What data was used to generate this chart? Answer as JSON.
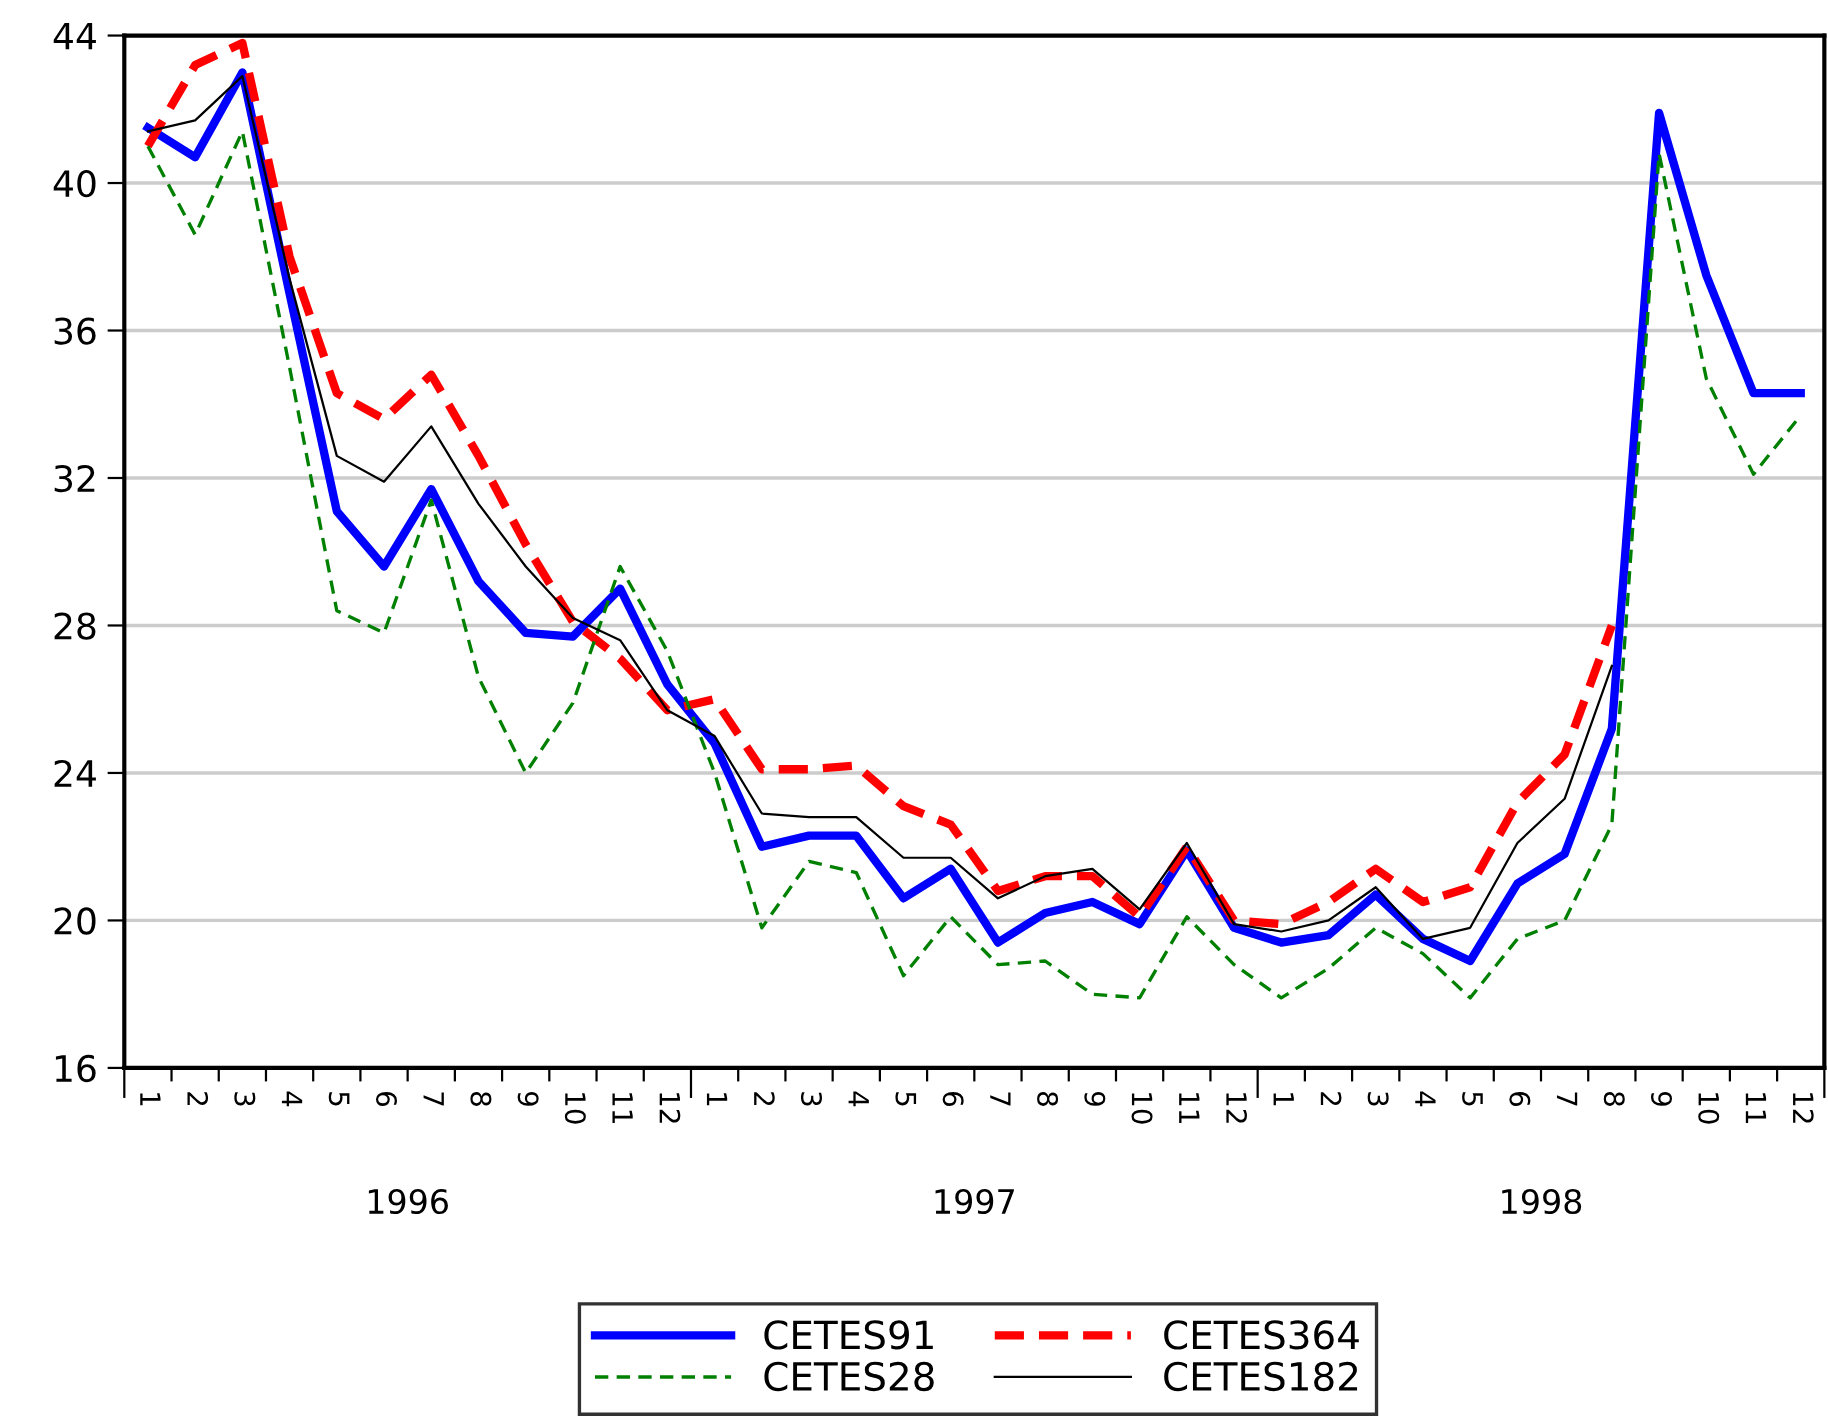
{
  "chart_data": {
    "type": "line",
    "categories": [
      "1",
      "2",
      "3",
      "4",
      "5",
      "6",
      "7",
      "8",
      "9",
      "10",
      "11",
      "12",
      "1",
      "2",
      "3",
      "4",
      "5",
      "6",
      "7",
      "8",
      "9",
      "10",
      "11",
      "12",
      "1",
      "2",
      "3",
      "4",
      "5",
      "6",
      "7",
      "8",
      "9",
      "10",
      "11",
      "12"
    ],
    "annotations": [
      "1996",
      "1997",
      "1998"
    ],
    "series": [
      {
        "name": "CETES91",
        "color": "#0000ff",
        "line_style": "solid",
        "values": [
          41.5,
          40.7,
          43.0,
          37.0,
          31.1,
          29.6,
          31.7,
          29.2,
          27.8,
          27.7,
          29.0,
          26.4,
          24.8,
          22.0,
          22.3,
          22.3,
          20.6,
          21.4,
          19.4,
          20.2,
          20.5,
          19.9,
          21.9,
          19.8,
          19.4,
          19.6,
          20.7,
          19.5,
          18.9,
          21.0,
          21.8,
          25.2,
          41.9,
          37.5,
          34.3,
          34.3
        ]
      },
      {
        "name": "CETES364",
        "color": "#ff0000",
        "line_style": "dashed",
        "values": [
          41.0,
          43.2,
          43.8,
          38.0,
          34.3,
          33.6,
          34.8,
          32.6,
          30.2,
          28.1,
          27.1,
          25.7,
          26.0,
          24.1,
          24.1,
          24.2,
          23.1,
          22.6,
          20.8,
          21.2,
          21.2,
          20.1,
          22.0,
          20.0,
          19.9,
          20.5,
          21.4,
          20.5,
          20.9,
          23.2,
          24.5,
          28.0,
          null,
          null,
          null,
          null
        ]
      },
      {
        "name": "CETES28",
        "color": "#008000",
        "line_style": "dashed",
        "values": [
          41.0,
          38.6,
          41.4,
          35.0,
          28.4,
          27.8,
          31.4,
          26.6,
          24.0,
          25.9,
          29.6,
          27.3,
          24.0,
          19.8,
          21.6,
          21.3,
          18.5,
          20.1,
          18.8,
          18.9,
          18.0,
          17.9,
          20.1,
          18.8,
          17.9,
          18.7,
          19.8,
          19.1,
          17.9,
          19.5,
          20.0,
          22.6,
          40.8,
          34.7,
          32.1,
          33.7
        ]
      },
      {
        "name": "CETES182",
        "color": "#000000",
        "line_style": "solid",
        "values": [
          41.4,
          41.7,
          42.9,
          37.4,
          32.6,
          31.9,
          33.4,
          31.3,
          29.6,
          28.2,
          27.6,
          25.7,
          25.0,
          22.9,
          22.8,
          22.8,
          21.7,
          21.7,
          20.6,
          21.2,
          21.4,
          20.3,
          22.1,
          19.9,
          19.7,
          20.0,
          20.9,
          19.5,
          19.8,
          22.1,
          23.3,
          26.9,
          null,
          null,
          null,
          null
        ]
      }
    ],
    "ylim": [
      16,
      44
    ],
    "yticks": [
      16,
      20,
      24,
      28,
      32,
      36,
      40,
      44
    ],
    "grid": "y",
    "legend": "bottom"
  }
}
